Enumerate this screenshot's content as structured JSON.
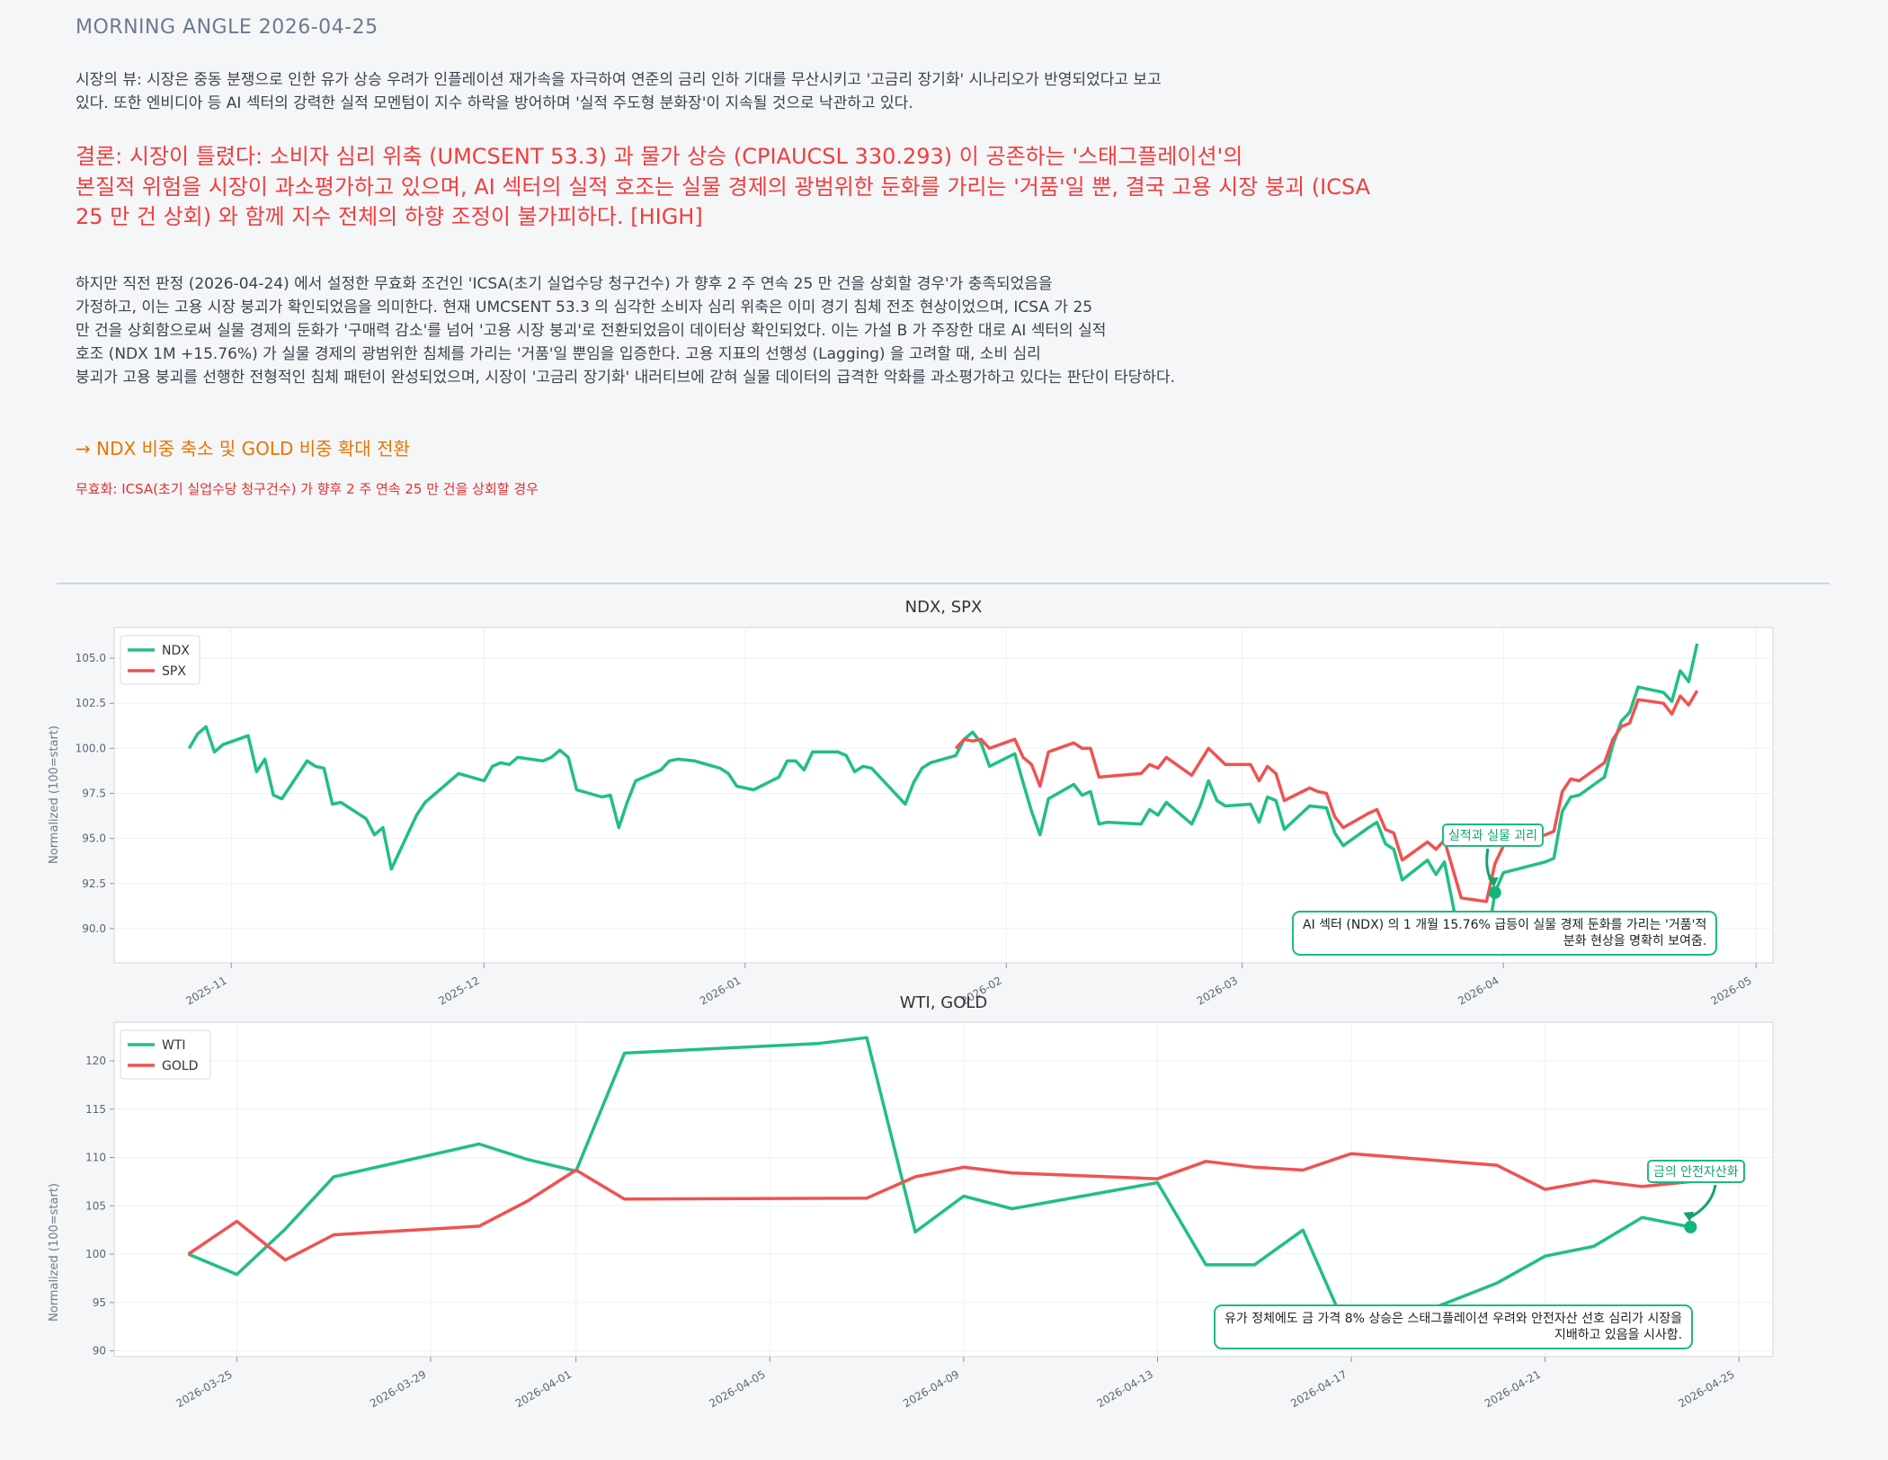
{
  "header": {
    "title": "MORNING ANGLE  2026-04-25"
  },
  "market_view": [
    "시장의 뷰: 시장은 중동 분쟁으로 인한 유가 상승 우려가 인플레이션 재가속을 자극하여 연준의 금리 인하 기대를 무산시키고 '고금리 장기화' 시나리오가 반영되었다고 보고",
    "있다. 또한 엔비디아 등 AI 섹터의 강력한 실적 모멘텀이 지수 하락을 방어하며 '실적 주도형 분화장'이 지속될 것으로 낙관하고 있다."
  ],
  "conclusion": [
    "결론: 시장이 틀렸다: 소비자 심리 위축 (UMCSENT 53.3) 과 물가 상승 (CPIAUCSL 330.293) 이 공존하는 '스태그플레이션'의",
    "본질적 위험을 시장이 과소평가하고 있으며, AI 섹터의 실적 호조는 실물 경제의 광범위한 둔화를 가리는 '거품'일 뿐, 결국 고용 시장 붕괴 (ICSA",
    "25 만 건 상회) 와 함께 지수 전체의 하향 조정이 불가피하다.  [HIGH]"
  ],
  "reasoning": [
    "하지만 직전 판정 (2026-04-24) 에서 설정한 무효화 조건인 'ICSA(초기 실업수당 청구건수) 가 향후 2 주 연속 25 만 건을 상회할 경우'가 충족되었음을",
    "가정하고, 이는 고용 시장 붕괴가 확인되었음을 의미한다. 현재 UMCSENT 53.3 의 심각한 소비자 심리 위축은 이미 경기 침체 전조 현상이었으며, ICSA 가 25",
    "만 건을 상회함으로써 실물 경제의 둔화가 '구매력 감소'를 넘어 '고용 시장 붕괴'로 전환되었음이 데이터상 확인되었다. 이는 가설 B 가 주장한 대로 AI 섹터의 실적",
    "호조 (NDX 1M +15.76%) 가 실물 경제의 광범위한 침체를 가리는 '거품'일 뿐임을 입증한다. 고용 지표의 선행성 (Lagging) 을 고려할 때, 소비 심리",
    "붕괴가 고용 붕괴를 선행한 전형적인 침체 패턴이 완성되었으며, 시장이 '고금리 장기화' 내러티브에 갇혀 실물 데이터의 급격한 악화를 과소평가하고 있다는 판단이 타당하다."
  ],
  "action": "→ NDX 비중 축소 및 GOLD 비중 확대 전환",
  "invalidation": "무효화: ICSA(초기 실업수당 청구건수) 가 향후 2 주 연속 25 만 건을 상회할 경우",
  "colors": {
    "green": "#21bf85",
    "red": "#ef5350",
    "accent": "#12a36f"
  },
  "chart_data": [
    {
      "type": "line",
      "title": "NDX, SPX",
      "ylabel": "Normalized (100=start)",
      "x_origin": "2025-11-01",
      "x_unit": "days",
      "xlim": [
        -13.9,
        183
      ],
      "ylim": [
        88.1,
        106.7
      ],
      "yticks": [
        90,
        92.5,
        95,
        97.5,
        100,
        102.5,
        105
      ],
      "ytick_labels": [
        "90.0",
        "92.5",
        "95.0",
        "97.5",
        "100.0",
        "102.5",
        "105.0"
      ],
      "xticks": [
        0,
        30,
        61,
        92,
        120,
        151,
        181
      ],
      "xtick_labels": [
        "2025-11",
        "2025-12",
        "2026-01",
        "2026-02",
        "2026-03",
        "2026-04",
        "2026-05"
      ],
      "legend": "top-left",
      "grid": true,
      "series": [
        {
          "name": "NDX",
          "color": "#21bf85",
          "points": [
            [
              -5,
              100.0
            ],
            [
              -4,
              100.8
            ],
            [
              -3,
              101.2
            ],
            [
              -2,
              99.8
            ],
            [
              -1,
              100.2
            ],
            [
              2,
              100.7
            ],
            [
              3,
              98.7
            ],
            [
              4,
              99.4
            ],
            [
              5,
              97.4
            ],
            [
              6,
              97.2
            ],
            [
              9,
              99.3
            ],
            [
              10,
              99.0
            ],
            [
              11,
              98.9
            ],
            [
              12,
              96.9
            ],
            [
              13,
              97.0
            ],
            [
              16,
              96.1
            ],
            [
              17,
              95.2
            ],
            [
              18,
              95.6
            ],
            [
              19,
              93.3
            ],
            [
              22,
              96.3
            ],
            [
              23,
              97.0
            ],
            [
              25,
              97.8
            ],
            [
              27,
              98.6
            ],
            [
              30,
              98.2
            ],
            [
              31,
              99.0
            ],
            [
              32,
              99.2
            ],
            [
              33,
              99.1
            ],
            [
              34,
              99.5
            ],
            [
              37,
              99.3
            ],
            [
              38,
              99.5
            ],
            [
              39,
              99.9
            ],
            [
              40,
              99.5
            ],
            [
              41,
              97.7
            ],
            [
              44,
              97.3
            ],
            [
              45,
              97.4
            ],
            [
              46,
              95.6
            ],
            [
              47,
              97.0
            ],
            [
              48,
              98.2
            ],
            [
              51,
              98.8
            ],
            [
              52,
              99.3
            ],
            [
              53,
              99.4
            ],
            [
              55,
              99.3
            ],
            [
              58,
              98.9
            ],
            [
              59,
              98.6
            ],
            [
              60,
              97.9
            ],
            [
              62,
              97.7
            ],
            [
              65,
              98.4
            ],
            [
              66,
              99.3
            ],
            [
              67,
              99.3
            ],
            [
              68,
              98.8
            ],
            [
              69,
              99.8
            ],
            [
              72,
              99.8
            ],
            [
              73,
              99.6
            ],
            [
              74,
              98.7
            ],
            [
              75,
              99.0
            ],
            [
              76,
              98.9
            ],
            [
              80,
              96.9
            ],
            [
              81,
              98.1
            ],
            [
              82,
              98.9
            ],
            [
              83,
              99.2
            ],
            [
              86,
              99.6
            ],
            [
              87,
              100.5
            ],
            [
              88,
              100.9
            ],
            [
              89,
              100.3
            ],
            [
              90,
              99.0
            ],
            [
              93,
              99.7
            ],
            [
              94,
              98.1
            ],
            [
              95,
              96.5
            ],
            [
              96,
              95.2
            ],
            [
              97,
              97.2
            ],
            [
              100,
              98.0
            ],
            [
              101,
              97.4
            ],
            [
              102,
              97.6
            ],
            [
              103,
              95.8
            ],
            [
              104,
              95.9
            ],
            [
              108,
              95.8
            ],
            [
              109,
              96.6
            ],
            [
              110,
              96.3
            ],
            [
              111,
              97.0
            ],
            [
              114,
              95.8
            ],
            [
              115,
              96.8
            ],
            [
              116,
              98.2
            ],
            [
              117,
              97.1
            ],
            [
              118,
              96.8
            ],
            [
              121,
              96.9
            ],
            [
              122,
              95.9
            ],
            [
              123,
              97.3
            ],
            [
              124,
              97.1
            ],
            [
              125,
              95.5
            ],
            [
              128,
              96.8
            ],
            [
              130,
              96.7
            ],
            [
              131,
              95.3
            ],
            [
              132,
              94.6
            ],
            [
              135,
              95.6
            ],
            [
              136,
              95.9
            ],
            [
              137,
              94.7
            ],
            [
              138,
              94.4
            ],
            [
              139,
              92.7
            ],
            [
              142,
              93.8
            ],
            [
              143,
              93.0
            ],
            [
              144,
              93.7
            ],
            [
              146,
              89.0
            ],
            [
              149,
              89.0
            ],
            [
              150,
              92.0
            ],
            [
              151,
              93.1
            ],
            [
              156,
              93.7
            ],
            [
              157,
              93.9
            ],
            [
              158,
              96.5
            ],
            [
              159,
              97.3
            ],
            [
              160,
              97.4
            ],
            [
              163,
              98.4
            ],
            [
              164,
              100.2
            ],
            [
              165,
              101.5
            ],
            [
              166,
              102.0
            ],
            [
              167,
              103.4
            ],
            [
              170,
              103.1
            ],
            [
              171,
              102.6
            ],
            [
              172,
              104.3
            ],
            [
              173,
              103.7
            ],
            [
              174,
              105.8
            ]
          ]
        },
        {
          "name": "SPX",
          "color": "#ef5350",
          "points": [
            [
              86,
              100.0
            ],
            [
              87,
              100.5
            ],
            [
              88,
              100.4
            ],
            [
              89,
              100.5
            ],
            [
              90,
              100.0
            ],
            [
              93,
              100.5
            ],
            [
              94,
              99.5
            ],
            [
              95,
              99.1
            ],
            [
              96,
              97.9
            ],
            [
              97,
              99.8
            ],
            [
              100,
              100.3
            ],
            [
              101,
              100.0
            ],
            [
              102,
              100.0
            ],
            [
              103,
              98.4
            ],
            [
              108,
              98.6
            ],
            [
              109,
              99.1
            ],
            [
              110,
              98.9
            ],
            [
              111,
              99.5
            ],
            [
              114,
              98.5
            ],
            [
              116,
              100.0
            ],
            [
              118,
              99.1
            ],
            [
              121,
              99.1
            ],
            [
              122,
              98.2
            ],
            [
              123,
              99.0
            ],
            [
              124,
              98.6
            ],
            [
              125,
              97.1
            ],
            [
              128,
              97.8
            ],
            [
              129,
              97.6
            ],
            [
              130,
              97.5
            ],
            [
              131,
              96.2
            ],
            [
              132,
              95.6
            ],
            [
              135,
              96.4
            ],
            [
              136,
              96.6
            ],
            [
              137,
              95.5
            ],
            [
              138,
              95.3
            ],
            [
              139,
              93.8
            ],
            [
              142,
              94.8
            ],
            [
              143,
              94.4
            ],
            [
              144,
              94.9
            ],
            [
              146,
              91.7
            ],
            [
              149,
              91.5
            ],
            [
              150,
              93.6
            ],
            [
              151,
              94.6
            ],
            [
              156,
              95.2
            ],
            [
              157,
              95.4
            ],
            [
              158,
              97.6
            ],
            [
              159,
              98.3
            ],
            [
              160,
              98.2
            ],
            [
              163,
              99.2
            ],
            [
              164,
              100.5
            ],
            [
              165,
              101.2
            ],
            [
              166,
              101.4
            ],
            [
              167,
              102.7
            ],
            [
              170,
              102.5
            ],
            [
              171,
              101.9
            ],
            [
              172,
              102.9
            ],
            [
              173,
              102.4
            ],
            [
              174,
              103.2
            ]
          ]
        }
      ],
      "annotation": {
        "label": "실적과 실물 괴리",
        "target": {
          "series": "NDX",
          "x": 150,
          "y": 92.0
        },
        "note_lines": [
          "AI 섹터 (NDX) 의 1 개월 15.76% 급등이 실물 경제 둔화를 가리는 '거품'적",
          "분화 현상을 명확히 보여줌."
        ]
      }
    },
    {
      "type": "line",
      "title": "WTI, GOLD",
      "ylabel": "Normalized (100=start)",
      "x_origin": "2026-03-25",
      "x_unit": "days",
      "xlim": [
        -2.53,
        31.7
      ],
      "ylim": [
        89.4,
        124
      ],
      "yticks": [
        90,
        95,
        100,
        105,
        110,
        115,
        120
      ],
      "ytick_labels": [
        "90",
        "95",
        "100",
        "105",
        "110",
        "115",
        "120"
      ],
      "xticks": [
        0,
        4,
        7,
        11,
        15,
        19,
        23,
        27,
        31
      ],
      "xtick_labels": [
        "2026-03-25",
        "2026-03-29",
        "2026-04-01",
        "2026-04-05",
        "2026-04-09",
        "2026-04-13",
        "2026-04-17",
        "2026-04-21",
        "2026-04-25"
      ],
      "legend": "top-left",
      "grid": true,
      "series": [
        {
          "name": "WTI",
          "color": "#21bf85",
          "points": [
            [
              -1,
              100.0
            ],
            [
              0,
              97.9
            ],
            [
              1,
              102.6
            ],
            [
              2,
              108.0
            ],
            [
              5,
              111.4
            ],
            [
              6,
              109.8
            ],
            [
              7,
              108.6
            ],
            [
              8,
              120.8
            ],
            [
              12,
              121.8
            ],
            [
              13,
              122.4
            ],
            [
              14,
              102.3
            ],
            [
              15,
              106.0
            ],
            [
              16,
              104.7
            ],
            [
              19,
              107.4
            ],
            [
              20,
              98.9
            ],
            [
              21,
              98.9
            ],
            [
              22,
              102.5
            ],
            [
              23,
              91.1
            ],
            [
              26,
              97.0
            ],
            [
              27,
              99.8
            ],
            [
              28,
              100.8
            ],
            [
              29,
              103.8
            ],
            [
              30,
              102.8
            ]
          ]
        },
        {
          "name": "GOLD",
          "color": "#ef5350",
          "points": [
            [
              -1,
              100.0
            ],
            [
              0,
              103.4
            ],
            [
              1,
              99.4
            ],
            [
              2,
              102.0
            ],
            [
              5,
              102.9
            ],
            [
              6,
              105.5
            ],
            [
              7,
              108.7
            ],
            [
              8,
              105.7
            ],
            [
              13,
              105.8
            ],
            [
              14,
              108.0
            ],
            [
              15,
              109.0
            ],
            [
              16,
              108.4
            ],
            [
              19,
              107.8
            ],
            [
              20,
              109.6
            ],
            [
              21,
              109.0
            ],
            [
              22,
              108.7
            ],
            [
              23,
              110.4
            ],
            [
              26,
              109.2
            ],
            [
              27,
              106.7
            ],
            [
              28,
              107.6
            ],
            [
              29,
              107.0
            ],
            [
              30,
              107.5
            ]
          ]
        }
      ],
      "annotation": {
        "label": "금의 안전자산화",
        "target": {
          "series": "WTI",
          "x": 30,
          "y": 102.8
        },
        "note_lines": [
          "유가 정체에도 금 가격 8% 상승은 스태그플레이션 우려와 안전자산 선호 심리가 시장을",
          "지배하고 있음을 시사함."
        ]
      }
    }
  ]
}
